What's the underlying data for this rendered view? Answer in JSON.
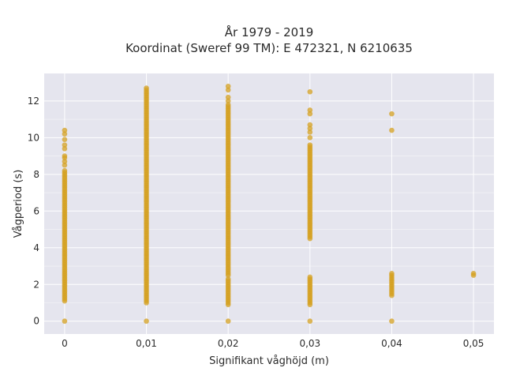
{
  "chart_data": {
    "type": "scatter",
    "title": "År 1979 - 2019",
    "subtitle": "Koordinat (Sweref 99 TM): E 472321, N 6210635",
    "xlabel": "Signifikant våghöjd (m)",
    "ylabel": "Vågperiod (s)",
    "xlim": [
      -0.0025,
      0.0525
    ],
    "ylim": [
      -0.7,
      13.5
    ],
    "x_ticks": [
      0,
      0.01,
      0.02,
      0.03,
      0.04,
      0.05
    ],
    "x_tick_labels": [
      "0",
      "0,01",
      "0,02",
      "0,03",
      "0,04",
      "0,05"
    ],
    "y_ticks": [
      0,
      2,
      4,
      6,
      8,
      10,
      12
    ],
    "y_tick_labels": [
      "0",
      "2",
      "4",
      "6",
      "8",
      "10",
      "12"
    ],
    "grid": true,
    "marker_color": "#d4a020",
    "background_color": "#e5e5ee",
    "columns": [
      {
        "x": 0,
        "ranges": [
          [
            1.1,
            8.2
          ]
        ],
        "points": [
          0,
          8.5,
          8.7,
          8.9,
          9.0,
          9.4,
          9.6,
          9.9,
          10.2,
          10.4
        ]
      },
      {
        "x": 0.01,
        "ranges": [
          [
            1.0,
            12.7
          ]
        ],
        "points": [
          0
        ]
      },
      {
        "x": 0.02,
        "ranges": [
          [
            0.9,
            2.3
          ],
          [
            2.5,
            11.8
          ]
        ],
        "points": [
          0,
          12.0,
          12.2,
          12.6,
          12.8
        ]
      },
      {
        "x": 0.03,
        "ranges": [
          [
            0.9,
            2.4
          ],
          [
            4.5,
            9.6
          ]
        ],
        "points": [
          0,
          10.0,
          10.3,
          10.5,
          10.7,
          11.3,
          11.5,
          12.5
        ]
      },
      {
        "x": 0.04,
        "ranges": [
          [
            1.4,
            2.6
          ]
        ],
        "points": [
          0,
          10.4,
          11.3
        ]
      },
      {
        "x": 0.05,
        "ranges": [],
        "points": [
          2.5,
          2.6
        ]
      }
    ]
  }
}
